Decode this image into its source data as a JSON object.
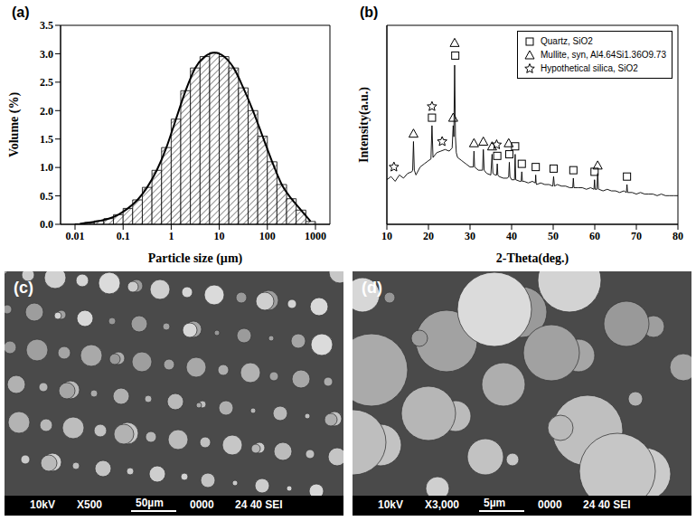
{
  "chart_data": [
    {
      "type": "histogram",
      "label": "(a)",
      "x_label": "Particle size (µm)",
      "y_label": "Volume (%)",
      "log": "x",
      "color": "#000000",
      "bins": [
        0.01,
        0.0158,
        0.0251,
        0.0398,
        0.0631,
        0.1,
        0.158,
        0.251,
        0.398,
        0.631,
        1,
        1.58,
        2.51,
        3.98,
        6.31,
        10,
        15.8,
        25.1,
        39.8,
        63.1,
        100,
        158,
        251,
        398,
        631,
        1000
      ],
      "counts": [
        0.01,
        0.03,
        0.06,
        0.1,
        0.17,
        0.28,
        0.43,
        0.65,
        0.95,
        1.35,
        1.85,
        2.35,
        2.75,
        2.95,
        3.02,
        2.95,
        2.75,
        2.4,
        2.0,
        1.55,
        1.1,
        0.7,
        0.45,
        0.25,
        0.05
      ],
      "xlim": [
        0.005,
        2000
      ],
      "xticks": [
        0.01,
        0.1,
        1,
        10,
        100,
        1000
      ],
      "ylim": [
        0,
        3.5
      ],
      "yticks": [
        {
          "value": 0,
          "label": "0.0"
        },
        0.5,
        {
          "value": 1,
          "label": "1.0"
        },
        1.5,
        {
          "value": 2,
          "label": "2.0"
        },
        2.5,
        {
          "value": 3,
          "label": "3.0"
        },
        3.5
      ]
    },
    {
      "type": "line",
      "label": "(b)",
      "x_label": "2-Theta(deg.)",
      "y_label": "Intensity(a.u.)",
      "color": "#000000",
      "tick_labels": "x",
      "legend": "upper right",
      "xlim": [
        10,
        80
      ],
      "xticks": [
        10,
        20,
        30,
        40,
        50,
        60,
        70,
        80
      ],
      "ylim": [
        0,
        125
      ],
      "x": [
        10,
        11,
        12,
        13,
        14,
        15,
        16,
        16.2,
        16.4,
        16.6,
        17,
        18,
        19,
        20,
        20.6,
        20.85,
        21.1,
        22,
        23,
        24,
        25,
        25.7,
        25.95,
        26.1,
        26.3,
        26.5,
        26.7,
        27,
        28,
        29,
        30,
        30.8,
        30.95,
        31.1,
        32,
        33,
        33.2,
        33.4,
        34,
        35,
        35.3,
        35.5,
        36,
        36.4,
        36.55,
        36.7,
        37,
        38,
        39,
        39.3,
        39.45,
        39.6,
        40,
        40.7,
        40.85,
        41,
        42,
        42.3,
        42.45,
        42.6,
        43,
        44,
        45,
        45.7,
        45.8,
        45.9,
        46,
        47,
        48,
        49,
        49.9,
        50.1,
        50.3,
        51,
        52,
        53,
        54,
        54.7,
        54.85,
        55,
        56,
        57,
        58,
        59,
        59.8,
        59.95,
        60.1,
        60.5,
        60.7,
        60.9,
        61,
        62,
        63,
        64,
        65,
        66,
        67,
        67.6,
        67.75,
        67.9,
        68,
        69,
        70,
        71,
        72,
        73,
        74,
        75,
        76,
        77,
        78,
        79,
        80
      ],
      "values": [
        28,
        30,
        27,
        31,
        29,
        32,
        33,
        34,
        52,
        34,
        31,
        36,
        38,
        40,
        41,
        62,
        42,
        45,
        46,
        47,
        46,
        48,
        62,
        55,
        100,
        55,
        45,
        42,
        40,
        38,
        36,
        36,
        46,
        36,
        34,
        34,
        47,
        34,
        32,
        31,
        44,
        32,
        31,
        31,
        38,
        31,
        30,
        29,
        29,
        30,
        39,
        30,
        28,
        28,
        44,
        28,
        27,
        27,
        33,
        27,
        27,
        26,
        27,
        26,
        31,
        26,
        25,
        26,
        25,
        25,
        24,
        30,
        24,
        25,
        24,
        24,
        23,
        23,
        29,
        23,
        23,
        23,
        22,
        23,
        22,
        28,
        22,
        22,
        32,
        22,
        22,
        21,
        22,
        21,
        21,
        20,
        21,
        20,
        25,
        20,
        20,
        20,
        19,
        20,
        19,
        19,
        19,
        18,
        19,
        18,
        18,
        18,
        18
      ],
      "series": [
        {
          "name": "Quartz, SiO2",
          "type": "scatter",
          "marker": "square",
          "x": [
            20.85,
            26.45,
            36.55,
            39.45,
            40.85,
            42.45,
            45.8,
            50.1,
            54.85,
            59.95,
            67.75
          ],
          "values": [
            67,
            106,
            43,
            44,
            49,
            38,
            36,
            35,
            34,
            33,
            30
          ]
        },
        {
          "name": "Mullite, syn, Al4.64Si1.36O9.73",
          "type": "scatter",
          "marker": "triangle",
          "x": [
            16.4,
            25.95,
            26.3,
            30.95,
            33.2,
            35.3,
            39.3,
            60.7
          ],
          "values": [
            57,
            67,
            114,
            51,
            52,
            49,
            51,
            37
          ]
        },
        {
          "name": "Hypothetical silica, SiO2",
          "type": "scatter",
          "marker": "star",
          "x": [
            11.7,
            20.85,
            23.3,
            36.4
          ],
          "values": [
            36,
            74,
            52,
            50
          ]
        }
      ]
    }
  ],
  "images": [
    {
      "label": "(c)",
      "voltage": "10kV",
      "magnification": "X500",
      "scale_bar": "50µm",
      "number": "0000",
      "info": "24 40 SEI"
    },
    {
      "label": "(d)",
      "voltage": "10kV",
      "magnification": "X3,000",
      "scale_bar": "5µm",
      "number": "0000",
      "info": "24 40 SEI"
    }
  ]
}
